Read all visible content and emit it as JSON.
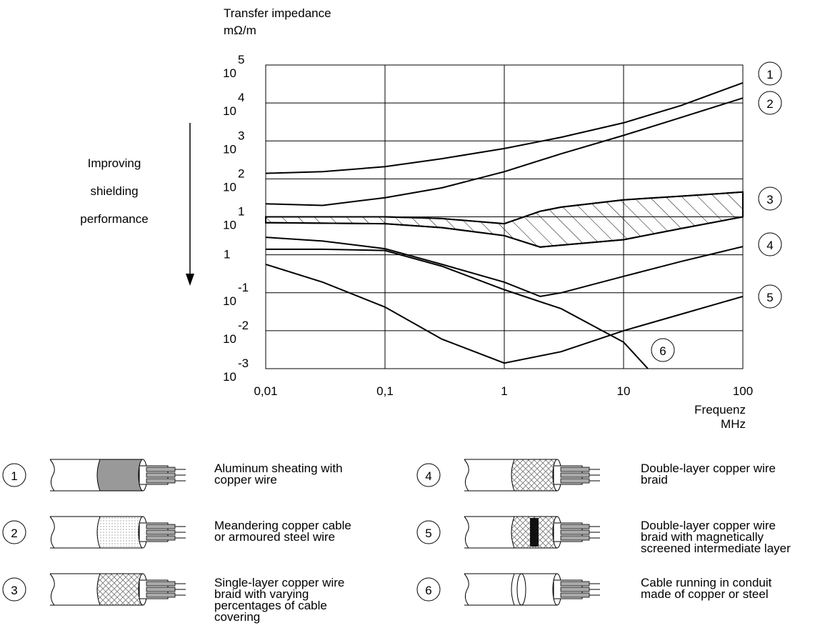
{
  "chart_data": {
    "type": "line",
    "y_label": [
      "Transfer impedance",
      "mΩ/m"
    ],
    "x_label": [
      "Frequenz",
      "MHz"
    ],
    "annotation": [
      "Improving",
      "shielding",
      "performance"
    ],
    "log_x": true,
    "log_y": true,
    "grid": true,
    "xlim": [
      0.01,
      100
    ],
    "ylim": [
      0.001,
      100000
    ],
    "xticks": [
      {
        "value": 0.01,
        "label": "0,01"
      },
      {
        "value": 0.1,
        "label": "0,1"
      },
      1,
      10,
      100
    ],
    "yticks": [
      {
        "value": 0.001,
        "label": "10",
        "exponent": "-3"
      },
      {
        "value": 0.01,
        "label": "10",
        "exponent": "-2"
      },
      {
        "value": 0.1,
        "label": "10",
        "exponent": "-1"
      },
      1,
      {
        "value": 10,
        "label": "10",
        "exponent": "1"
      },
      {
        "value": 100,
        "label": "10",
        "exponent": "2"
      },
      {
        "value": 1000,
        "label": "10",
        "exponent": "3"
      },
      {
        "value": 10000,
        "label": "10",
        "exponent": "4"
      },
      {
        "value": 100000,
        "label": "10",
        "exponent": "5"
      }
    ],
    "series": [
      {
        "name": "1",
        "color": "#000000",
        "description": [
          "Aluminum sheating with",
          "copper wire"
        ],
        "x": [
          0.01,
          0.03,
          0.1,
          0.3,
          1,
          3,
          10,
          30,
          100
        ],
        "values": [
          140,
          155,
          210,
          340,
          630,
          1250,
          3000,
          8500,
          34000
        ]
      },
      {
        "name": "2",
        "color": "#000000",
        "description": [
          "Meandering copper cable",
          "or armoured steel wire"
        ],
        "x": [
          0.01,
          0.03,
          0.1,
          0.3,
          1,
          3,
          10,
          30,
          100
        ],
        "values": [
          22,
          20,
          32,
          58,
          155,
          460,
          1400,
          4100,
          13500
        ]
      },
      {
        "name": "3",
        "color": "#000000",
        "description": [
          "Single-layer copper wire",
          "braid with varying",
          "percentages of cable",
          "covering"
        ],
        "x": [
          0.01,
          0.1,
          0.3,
          1,
          2,
          3,
          10,
          30,
          100
        ],
        "values": [
          10,
          10,
          9,
          6.6,
          14,
          18,
          28,
          35,
          45
        ],
        "lower": [
          7,
          6.6,
          5.2,
          3.2,
          1.6,
          1.8,
          2.5,
          4.9,
          10
        ]
      },
      {
        "name": "4",
        "color": "#000000",
        "description": [
          "Double-layer copper wire",
          "braid"
        ],
        "x": [
          0.01,
          0.03,
          0.1,
          0.3,
          1,
          2,
          3,
          10,
          30,
          100
        ],
        "values": [
          2.9,
          2.3,
          1.45,
          0.56,
          0.19,
          0.08,
          0.1,
          0.27,
          0.66,
          1.65
        ]
      },
      {
        "name": "5",
        "color": "#000000",
        "description": [
          "Double-layer copper wire",
          "braid with magnetically",
          "screened intermediate layer"
        ],
        "x": [
          0.01,
          0.03,
          0.1,
          0.3,
          1,
          3,
          10,
          30,
          100
        ],
        "values": [
          0.56,
          0.19,
          0.042,
          0.006,
          0.0014,
          0.0028,
          0.01,
          0.027,
          0.08
        ]
      },
      {
        "name": "6",
        "color": "#000000",
        "description": [
          "Cable running in conduit",
          "made of copper or steel"
        ],
        "x": [
          0.01,
          0.03,
          0.1,
          0.3,
          1,
          3,
          10,
          16
        ],
        "values": [
          1.4,
          1.4,
          1.3,
          0.5,
          0.12,
          0.038,
          0.005,
          0.001
        ]
      }
    ]
  }
}
